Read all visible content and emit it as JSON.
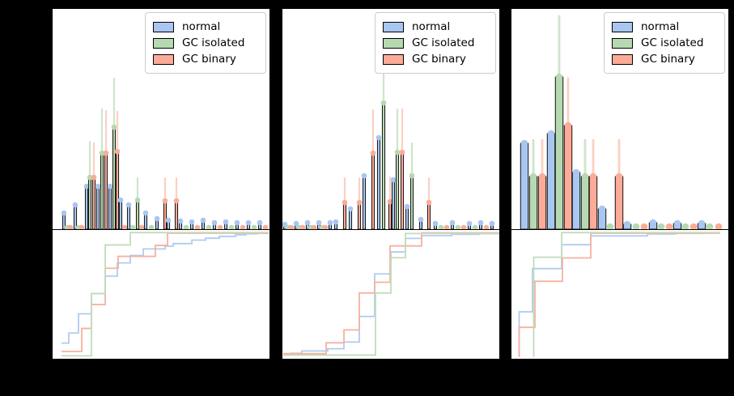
{
  "figure": {
    "background": "#000000",
    "panel_background": "#ffffff",
    "spine_color": "#000000",
    "note": "3-column figure; each column = top stem-histogram with error bars + bottom cumulative step plot sharing the x-axis; axis tick/label text is not visible (black on black)"
  },
  "legend": {
    "items": [
      {
        "label": "normal",
        "color": "#a9c6f1"
      },
      {
        "label": "GC isolated",
        "color": "#b6d9b1"
      },
      {
        "label": "GC binary",
        "color": "#fbab98"
      }
    ]
  },
  "colors": {
    "b": {
      "fill": "#a9c6f1",
      "err": "#cdddf7",
      "line": "#b0cbf2"
    },
    "g": {
      "fill": "#b6d9b1",
      "err": "#cde6c9",
      "line": "#c0ddbb"
    },
    "r": {
      "fill": "#fbab98",
      "err": "#fcd0c3",
      "line": "#f7b19e"
    }
  },
  "chart_data": [
    {
      "type": "histogram+cdf",
      "hist": {
        "bar_width": 3.2,
        "dot_radius": 3.3,
        "err_width": 2.2,
        "edge": "#000000",
        "stems": [
          [
            14,
            "b",
            20,
            0
          ],
          [
            18,
            "g",
            2,
            0
          ],
          [
            22,
            "r",
            2,
            0
          ],
          [
            28,
            "b",
            30,
            0
          ],
          [
            32,
            "g",
            2,
            0
          ],
          [
            36,
            "r",
            2,
            0
          ],
          [
            42,
            "b",
            53,
            0
          ],
          [
            46,
            "g",
            64,
            108
          ],
          [
            51,
            "r",
            64,
            106
          ],
          [
            56,
            "b",
            53,
            0
          ],
          [
            61,
            "g",
            94,
            148
          ],
          [
            66,
            "r",
            94,
            146
          ],
          [
            71,
            "b",
            53,
            0
          ],
          [
            76,
            "g",
            126,
            186
          ],
          [
            80,
            "r",
            96,
            145
          ],
          [
            84,
            "b",
            36,
            0
          ],
          [
            89,
            "r",
            2,
            0
          ],
          [
            94,
            "b",
            30,
            0
          ],
          [
            99,
            "g",
            2,
            0
          ],
          [
            105,
            "g",
            36,
            63
          ],
          [
            110,
            "r",
            2,
            0
          ],
          [
            115,
            "b",
            20,
            0
          ],
          [
            122,
            "g",
            2,
            0
          ],
          [
            129,
            "b",
            13,
            0
          ],
          [
            139,
            "r",
            35,
            63
          ],
          [
            143,
            "b",
            11,
            0
          ],
          [
            153,
            "r",
            35,
            63
          ],
          [
            158,
            "b",
            10,
            0
          ],
          [
            165,
            "g",
            2,
            0
          ],
          [
            172,
            "b",
            9,
            0
          ],
          [
            179,
            "r",
            2,
            0
          ],
          [
            186,
            "b",
            11,
            0
          ],
          [
            193,
            "g",
            2,
            0
          ],
          [
            200,
            "b",
            8,
            0
          ],
          [
            207,
            "r",
            2,
            0
          ],
          [
            214,
            "b",
            9,
            0
          ],
          [
            221,
            "g",
            2,
            0
          ],
          [
            228,
            "b",
            8,
            0
          ],
          [
            235,
            "r",
            2,
            0
          ],
          [
            242,
            "b",
            8,
            0
          ],
          [
            249,
            "g",
            2,
            0
          ],
          [
            256,
            "b",
            8,
            0
          ],
          [
            263,
            "r",
            2,
            0
          ]
        ]
      },
      "cdf": {
        "series": [
          {
            "color": "b",
            "start": [
              11,
              0.107
            ],
            "steps": [
              [
                20,
                0.188
              ],
              [
                32,
                0.343
              ],
              [
                48,
                0.507
              ],
              [
                65,
                0.647
              ],
              [
                80,
                0.754
              ],
              [
                96,
                0.814
              ],
              [
                112,
                0.867
              ],
              [
                139,
                0.889
              ],
              [
                149,
                0.91
              ],
              [
                172,
                0.938
              ],
              [
                189,
                0.953
              ],
              [
                206,
                0.968
              ],
              [
                226,
                0.981
              ],
              [
                239,
                0.989
              ],
              [
                253,
                0.993
              ]
            ],
            "end": 266
          },
          {
            "color": "r",
            "start": [
              11,
              0.039
            ],
            "steps": [
              [
                36,
                0.225
              ],
              [
                48,
                0.418
              ],
              [
                65,
                0.711
              ],
              [
                81,
                0.807
              ],
              [
                127,
                0.895
              ],
              [
                142,
                0.994
              ]
            ],
            "end": 267
          },
          {
            "color": "g",
            "start": [
              11,
              0.004
            ],
            "steps": [
              [
                48,
                0.507
              ],
              [
                65,
                0.899
              ],
              [
                96,
                0.999
              ]
            ],
            "end": 267
          }
        ]
      }
    },
    {
      "type": "histogram+cdf",
      "hist": {
        "bar_width": 3.2,
        "dot_radius": 3.3,
        "err_width": 2.2,
        "edge": "#000000",
        "stems": [
          [
            3,
            "b",
            6,
            0
          ],
          [
            7,
            "g",
            2,
            0
          ],
          [
            11,
            "r",
            2,
            0
          ],
          [
            17,
            "b",
            7,
            0
          ],
          [
            21,
            "g",
            2,
            0
          ],
          [
            25,
            "r",
            2,
            0
          ],
          [
            31,
            "b",
            8,
            0
          ],
          [
            35,
            "g",
            2,
            0
          ],
          [
            39,
            "r",
            2,
            0
          ],
          [
            45,
            "b",
            8,
            0
          ],
          [
            49,
            "g",
            2,
            0
          ],
          [
            53,
            "r",
            2,
            0
          ],
          [
            59,
            "b",
            8,
            0
          ],
          [
            66,
            "b",
            9,
            0
          ],
          [
            77,
            "r",
            33,
            63
          ],
          [
            84,
            "b",
            25,
            0
          ],
          [
            95,
            "r",
            33,
            63
          ],
          [
            101,
            "b",
            66,
            0
          ],
          [
            112,
            "r",
            94,
            147
          ],
          [
            119,
            "b",
            113,
            0
          ],
          [
            125,
            "g",
            156,
            226
          ],
          [
            133,
            "r",
            34,
            64
          ],
          [
            137,
            "b",
            61,
            0
          ],
          [
            142,
            "g",
            95,
            148
          ],
          [
            148,
            "r",
            95,
            148
          ],
          [
            154,
            "b",
            28,
            0
          ],
          [
            160,
            "g",
            66,
            106
          ],
          [
            171,
            "b",
            12,
            0
          ],
          [
            181,
            "r",
            33,
            63
          ],
          [
            189,
            "b",
            7,
            0
          ],
          [
            196,
            "g",
            2,
            0
          ],
          [
            203,
            "r",
            2,
            0
          ],
          [
            210,
            "b",
            8,
            0
          ],
          [
            217,
            "g",
            2,
            0
          ],
          [
            224,
            "r",
            2,
            0
          ],
          [
            231,
            "b",
            7,
            0
          ],
          [
            238,
            "g",
            2,
            0
          ],
          [
            245,
            "b",
            8,
            0
          ],
          [
            252,
            "r",
            2,
            0
          ],
          [
            259,
            "b",
            7,
            0
          ]
        ]
      },
      "cdf": {
        "series": [
          {
            "color": "b",
            "start": [
              9,
              0.024
            ],
            "steps": [
              [
                24,
                0.043
              ],
              [
                56,
                0.061
              ],
              [
                76,
                0.115
              ],
              [
                95,
                0.322
              ],
              [
                114,
                0.665
              ],
              [
                134,
                0.843
              ],
              [
                152,
                0.952
              ],
              [
                172,
                0.974
              ],
              [
                209,
                0.985
              ],
              [
                243,
                0.99
              ]
            ],
            "end": 267
          },
          {
            "color": "r",
            "start": [
              1,
              0.022
            ],
            "steps": [
              [
                54,
                0.109
              ],
              [
                76,
                0.213
              ],
              [
                95,
                0.511
              ],
              [
                114,
                0.598
              ],
              [
                133,
                0.891
              ],
              [
                172,
                0.997
              ]
            ],
            "end": 268
          },
          {
            "color": "g",
            "start": [
              1,
              0.01
            ],
            "steps": [
              [
                115,
                0.511
              ],
              [
                134,
                0.796
              ],
              [
                152,
                0.991
              ]
            ],
            "end": 268
          }
        ]
      }
    },
    {
      "type": "histogram+cdf",
      "hist": {
        "bar_width": 9.5,
        "dot_radius": 4.3,
        "err_width": 2.8,
        "edge": "#000000",
        "stems": [
          [
            16,
            "b",
            106,
            0
          ],
          [
            27,
            "g",
            65,
            110
          ],
          [
            38,
            "r",
            65,
            110
          ],
          [
            49,
            "b",
            118,
            0
          ],
          [
            59,
            "g",
            188,
            263
          ],
          [
            70,
            "r",
            128,
            186
          ],
          [
            80,
            "b",
            70,
            0
          ],
          [
            91,
            "g",
            65,
            110
          ],
          [
            101,
            "r",
            65,
            110
          ],
          [
            112,
            "b",
            25,
            0
          ],
          [
            122,
            "g",
            3,
            0
          ],
          [
            133,
            "r",
            65,
            110
          ],
          [
            143,
            "b",
            6,
            0
          ],
          [
            154,
            "g",
            3,
            0
          ],
          [
            164,
            "r",
            3,
            0
          ],
          [
            175,
            "b",
            8,
            0
          ],
          [
            185,
            "g",
            3,
            0
          ],
          [
            195,
            "r",
            3,
            0
          ],
          [
            205,
            "b",
            7,
            0
          ],
          [
            215,
            "g",
            3,
            0
          ],
          [
            225,
            "r",
            3,
            0
          ],
          [
            235,
            "b",
            7,
            0
          ],
          [
            245,
            "g",
            3,
            0
          ],
          [
            256,
            "r",
            3,
            0
          ]
        ]
      },
      "cdf": {
        "series": [
          {
            "color": "b",
            "start": [
              9,
              0.0
            ],
            "steps": [
              [
                9.5,
                0.359
              ],
              [
                26,
                0.708
              ],
              [
                62,
                0.901
              ],
              [
                98,
                0.972
              ],
              [
                168,
                0.987
              ],
              [
                203,
                0.992
              ],
              [
                239,
                0.997
              ]
            ],
            "end": 257
          },
          {
            "color": "r",
            "start": [
              9,
              0.0
            ],
            "steps": [
              [
                9.5,
                0.234
              ],
              [
                29,
                0.606
              ],
              [
                63,
                0.794
              ],
              [
                98,
                0.994
              ]
            ],
            "end": 258
          },
          {
            "color": "g",
            "start": [
              27,
              0.0
            ],
            "steps": [
              [
                27.5,
                0.8
              ],
              [
                62,
                0.999
              ]
            ],
            "end": 258
          }
        ]
      }
    }
  ]
}
